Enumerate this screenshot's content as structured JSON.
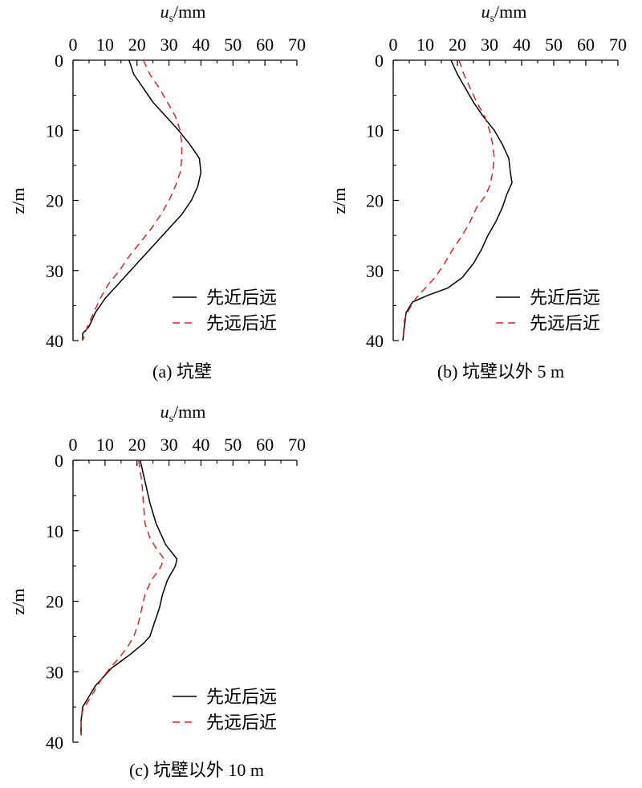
{
  "colors": {
    "solid": "#000000",
    "dashed": "#d62728",
    "axis": "#000000"
  },
  "chart_data": [
    {
      "type": "line",
      "caption": "(a) 坑壁",
      "xlabel_main": "u",
      "xlabel_sub": "s",
      "xlabel_unit": "/mm",
      "ylabel": "z/m",
      "xlim": [
        0,
        70
      ],
      "ylim": [
        0,
        40
      ],
      "x_ticks": [
        "0",
        "10",
        "20",
        "30",
        "40",
        "50",
        "60",
        "70"
      ],
      "y_ticks": [
        "0",
        "10",
        "20",
        "30",
        "40"
      ],
      "legend_position": "bottom-right",
      "series": [
        {
          "name": "先近后远",
          "style": "solid",
          "points": [
            [
              17.5,
              0
            ],
            [
              19,
              2
            ],
            [
              22,
              4
            ],
            [
              25,
              6
            ],
            [
              29,
              8
            ],
            [
              33,
              10
            ],
            [
              36.5,
              12
            ],
            [
              39.5,
              14
            ],
            [
              40,
              16
            ],
            [
              39,
              18
            ],
            [
              37,
              20
            ],
            [
              34,
              22
            ],
            [
              30,
              24
            ],
            [
              26,
              26
            ],
            [
              22,
              28
            ],
            [
              18,
              30
            ],
            [
              14,
              32
            ],
            [
              10,
              34
            ],
            [
              7,
              36
            ],
            [
              5,
              38
            ],
            [
              3,
              39
            ],
            [
              3,
              40
            ]
          ]
        },
        {
          "name": "先远后近",
          "style": "dashed",
          "points": [
            [
              22,
              0
            ],
            [
              24,
              2
            ],
            [
              27,
              4
            ],
            [
              29.5,
              6
            ],
            [
              32,
              8
            ],
            [
              33.5,
              10
            ],
            [
              34,
              12
            ],
            [
              34,
              14
            ],
            [
              33.5,
              16
            ],
            [
              32,
              18
            ],
            [
              30,
              20
            ],
            [
              27.5,
              22
            ],
            [
              24.5,
              24
            ],
            [
              21,
              26
            ],
            [
              17.5,
              28
            ],
            [
              14.5,
              30
            ],
            [
              11,
              32
            ],
            [
              8.5,
              34
            ],
            [
              6.5,
              36
            ],
            [
              4.5,
              38
            ],
            [
              3,
              40
            ]
          ]
        }
      ]
    },
    {
      "type": "line",
      "caption": "(b) 坑壁以外 5 m",
      "xlabel_main": "u",
      "xlabel_sub": "s",
      "xlabel_unit": "/mm",
      "ylabel": "z/m",
      "xlim": [
        0,
        70
      ],
      "ylim": [
        0,
        40
      ],
      "x_ticks": [
        "0",
        "10",
        "20",
        "30",
        "40",
        "50",
        "60",
        "70"
      ],
      "y_ticks": [
        "0",
        "10",
        "20",
        "30",
        "40"
      ],
      "legend_position": "bottom-right",
      "series": [
        {
          "name": "先近后远",
          "style": "solid",
          "points": [
            [
              18,
              0
            ],
            [
              20,
              2
            ],
            [
              22.5,
              4
            ],
            [
              25,
              6
            ],
            [
              28,
              8
            ],
            [
              31.5,
              10
            ],
            [
              34,
              12
            ],
            [
              36,
              14
            ],
            [
              36.5,
              16
            ],
            [
              37,
              17.5
            ],
            [
              35.5,
              19
            ],
            [
              34,
              21
            ],
            [
              32,
              23
            ],
            [
              29.5,
              25
            ],
            [
              27.5,
              27
            ],
            [
              25,
              29
            ],
            [
              21.5,
              31
            ],
            [
              17,
              32.5
            ],
            [
              11,
              33.5
            ],
            [
              6,
              34.5
            ],
            [
              4,
              36
            ],
            [
              3.5,
              38
            ],
            [
              3,
              40
            ]
          ]
        },
        {
          "name": "先远后近",
          "style": "dashed",
          "points": [
            [
              20.5,
              0
            ],
            [
              22,
              2
            ],
            [
              24,
              4
            ],
            [
              26,
              6
            ],
            [
              28.5,
              8
            ],
            [
              30,
              10
            ],
            [
              31,
              12
            ],
            [
              31.5,
              14
            ],
            [
              31,
              16
            ],
            [
              30,
              18
            ],
            [
              28.5,
              19.5
            ],
            [
              26,
              21
            ],
            [
              24,
              23
            ],
            [
              21.5,
              25
            ],
            [
              18.5,
              27
            ],
            [
              16,
              29
            ],
            [
              13,
              31
            ],
            [
              10,
              32.5
            ],
            [
              7,
              34
            ],
            [
              5,
              35.5
            ],
            [
              3.5,
              37
            ],
            [
              3,
              40
            ]
          ]
        }
      ]
    },
    {
      "type": "line",
      "caption": "(c) 坑壁以外 10 m",
      "xlabel_main": "u",
      "xlabel_sub": "s",
      "xlabel_unit": "/mm",
      "ylabel": "z/m",
      "xlim": [
        0,
        70
      ],
      "ylim": [
        0,
        40
      ],
      "x_ticks": [
        "0",
        "10",
        "20",
        "30",
        "40",
        "50",
        "60",
        "70"
      ],
      "y_ticks": [
        "0",
        "10",
        "20",
        "30",
        "40"
      ],
      "legend_position": "bottom-right",
      "series": [
        {
          "name": "先近后远",
          "style": "solid",
          "points": [
            [
              21,
              0
            ],
            [
              22.5,
              3
            ],
            [
              24,
              6
            ],
            [
              26,
              9
            ],
            [
              29,
              12
            ],
            [
              32.5,
              14
            ],
            [
              32,
              15
            ],
            [
              29.5,
              17
            ],
            [
              28,
              19
            ],
            [
              27,
              21
            ],
            [
              25.5,
              23
            ],
            [
              24,
              25
            ],
            [
              22,
              26
            ],
            [
              18,
              27.5
            ],
            [
              15,
              28.5
            ],
            [
              12,
              29.5
            ],
            [
              9,
              31
            ],
            [
              7,
              32
            ],
            [
              5,
              33.5
            ],
            [
              3,
              35
            ],
            [
              2.5,
              37
            ],
            [
              2.5,
              39
            ]
          ]
        },
        {
          "name": "先远后近",
          "style": "dashed",
          "points": [
            [
              20.5,
              0
            ],
            [
              21.5,
              3
            ],
            [
              22,
              6
            ],
            [
              22.5,
              9
            ],
            [
              24,
              11
            ],
            [
              26,
              12.5
            ],
            [
              28.5,
              14
            ],
            [
              27,
              15.5
            ],
            [
              24.5,
              17
            ],
            [
              22.5,
              19
            ],
            [
              21.5,
              21
            ],
            [
              20.5,
              23
            ],
            [
              19,
              25
            ],
            [
              17,
              26.5
            ],
            [
              14.5,
              28
            ],
            [
              11.5,
              29.5
            ],
            [
              9,
              31
            ],
            [
              7,
              32.5
            ],
            [
              5,
              34
            ],
            [
              3,
              35.5
            ],
            [
              2.5,
              37
            ],
            [
              2.5,
              39
            ]
          ]
        }
      ]
    }
  ]
}
